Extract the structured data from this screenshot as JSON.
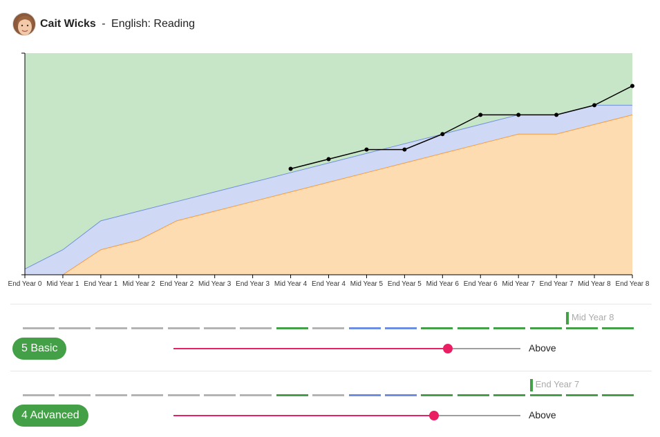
{
  "header": {
    "student_name": "Cait Wicks",
    "separator": "-",
    "subject": "English: Reading"
  },
  "chart_data": {
    "type": "area",
    "title": "",
    "xlabel": "",
    "ylabel": "",
    "categories": [
      "End Year 0",
      "Mid Year 1",
      "End Year 1",
      "Mid Year 2",
      "End Year 2",
      "Mid Year 3",
      "End Year 3",
      "Mid Year 4",
      "End Year 4",
      "Mid Year 5",
      "End Year 5",
      "Mid Year 6",
      "End Year 6",
      "Mid Year 7",
      "End Year 7",
      "Mid Year 8",
      "End Year 8"
    ],
    "ylim": [
      0,
      11.5
    ],
    "bands": [
      {
        "name": "",
        "color": "#fddcb1",
        "line": "#f39c41",
        "values": [
          -0.7,
          0,
          1.3,
          1.8,
          2.8,
          3.3,
          3.8,
          4.3,
          4.8,
          5.3,
          5.8,
          6.3,
          6.8,
          7.3,
          7.3,
          7.8,
          8.3
        ]
      },
      {
        "name": "",
        "color": "#cfd9f5",
        "line": "#6f8fe0",
        "values": [
          0.3,
          1.3,
          2.8,
          3.3,
          3.8,
          4.3,
          4.8,
          5.3,
          5.8,
          6.3,
          6.8,
          7.3,
          7.8,
          8.3,
          8.3,
          8.8,
          8.8
        ]
      },
      {
        "name": "",
        "color": "#c7e6c7",
        "line": "#c7e6c7",
        "values": [
          11.5,
          11.5,
          11.5,
          11.5,
          11.5,
          11.5,
          11.5,
          11.5,
          11.5,
          11.5,
          11.5,
          11.5,
          11.5,
          11.5,
          11.5,
          11.5,
          11.5
        ]
      }
    ],
    "series": [
      {
        "name": "",
        "color": "#000000",
        "values": [
          null,
          null,
          null,
          null,
          null,
          null,
          null,
          5.5,
          6.0,
          6.5,
          6.5,
          7.3,
          8.3,
          8.3,
          8.3,
          8.8,
          9.8
        ]
      }
    ],
    "grid": false
  },
  "rows": [
    {
      "marker_label": "Mid Year 8",
      "marker_index": 15,
      "marker_color": "#43a047",
      "badge_label": "5 Basic",
      "badge_color": "#43a047",
      "slider_value": 0.79,
      "slider_label": "Above",
      "dashes": [
        "grey",
        "grey",
        "grey",
        "grey",
        "grey",
        "grey",
        "grey",
        "green",
        "grey",
        "blue",
        "blue",
        "green",
        "green",
        "green",
        "green",
        "green",
        "green"
      ]
    },
    {
      "marker_label": "End Year 7",
      "marker_index": 14,
      "marker_color": "#43a047",
      "badge_label": "4 Advanced",
      "badge_color": "#43a047",
      "slider_value": 0.75,
      "slider_label": "Above",
      "dashes": [
        "grey",
        "grey",
        "grey",
        "grey",
        "grey",
        "grey",
        "grey",
        "green",
        "grey",
        "blue",
        "blue",
        "green",
        "green",
        "green",
        "green",
        "green",
        "green"
      ]
    }
  ],
  "colors": {
    "grey": "#b3b3b3",
    "green": "#43a047",
    "blue": "#6c8de0",
    "slider_active": "#e91e63",
    "slider_track": "#9e9e9e"
  }
}
